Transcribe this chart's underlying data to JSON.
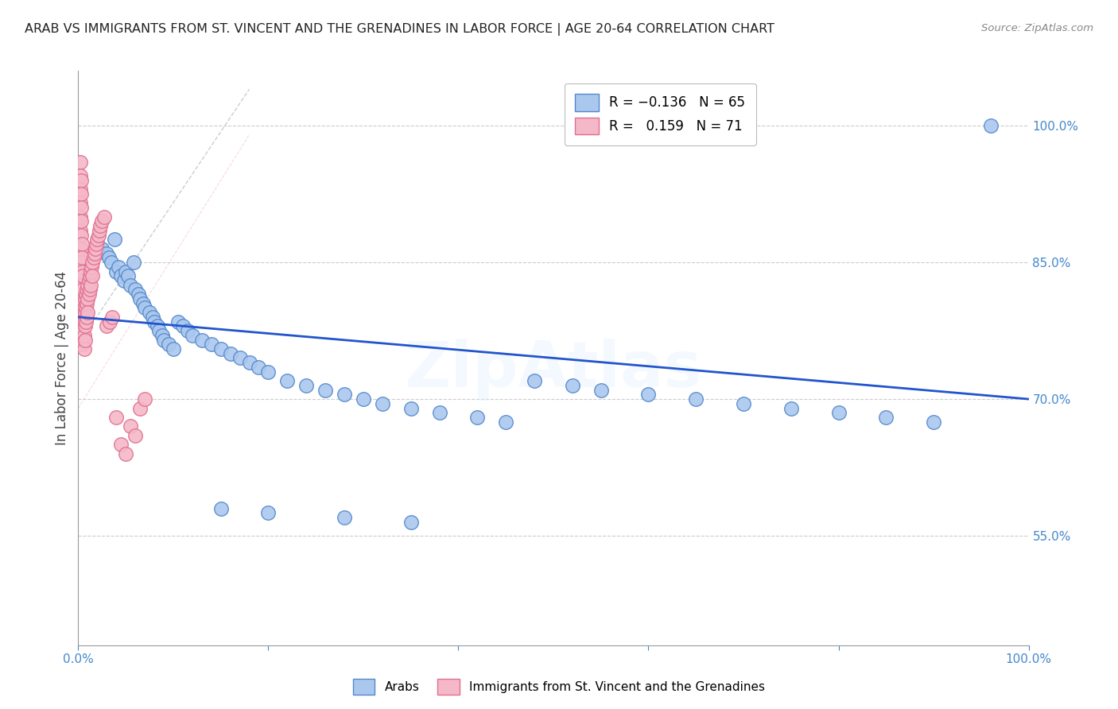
{
  "title": "ARAB VS IMMIGRANTS FROM ST. VINCENT AND THE GRENADINES IN LABOR FORCE | AGE 20-64 CORRELATION CHART",
  "source": "Source: ZipAtlas.com",
  "ylabel": "In Labor Force | Age 20-64",
  "xlim": [
    0.0,
    1.0
  ],
  "ylim": [
    0.43,
    1.06
  ],
  "y_tick_labels": [
    "55.0%",
    "70.0%",
    "85.0%",
    "100.0%"
  ],
  "y_tick_positions": [
    0.55,
    0.7,
    0.85,
    1.0
  ],
  "arab_color": "#aac8ee",
  "arab_edge_color": "#5588cc",
  "svg_color": "#f5b8c8",
  "svg_edge_color": "#e07090",
  "trend_arab_color": "#2255cc",
  "watermark": "ZipAtlas",
  "axis_label_color": "#4488cc",
  "background_color": "#ffffff",
  "grid_color": "#cccccc",
  "title_color": "#222222",
  "arab_x": [
    0.02,
    0.025,
    0.03,
    0.032,
    0.035,
    0.038,
    0.04,
    0.042,
    0.045,
    0.048,
    0.05,
    0.052,
    0.055,
    0.058,
    0.06,
    0.063,
    0.065,
    0.068,
    0.07,
    0.075,
    0.078,
    0.08,
    0.083,
    0.085,
    0.088,
    0.09,
    0.095,
    0.1,
    0.105,
    0.11,
    0.115,
    0.12,
    0.13,
    0.14,
    0.15,
    0.16,
    0.17,
    0.18,
    0.19,
    0.2,
    0.22,
    0.24,
    0.26,
    0.28,
    0.3,
    0.32,
    0.35,
    0.38,
    0.42,
    0.45,
    0.48,
    0.52,
    0.55,
    0.6,
    0.65,
    0.7,
    0.75,
    0.8,
    0.85,
    0.9,
    0.15,
    0.2,
    0.28,
    0.35,
    0.96
  ],
  "arab_y": [
    0.87,
    0.865,
    0.86,
    0.855,
    0.85,
    0.875,
    0.84,
    0.845,
    0.835,
    0.83,
    0.84,
    0.835,
    0.825,
    0.85,
    0.82,
    0.815,
    0.81,
    0.805,
    0.8,
    0.795,
    0.79,
    0.785,
    0.78,
    0.775,
    0.77,
    0.765,
    0.76,
    0.755,
    0.785,
    0.78,
    0.775,
    0.77,
    0.765,
    0.76,
    0.755,
    0.75,
    0.745,
    0.74,
    0.735,
    0.73,
    0.72,
    0.715,
    0.71,
    0.705,
    0.7,
    0.695,
    0.69,
    0.685,
    0.68,
    0.675,
    0.72,
    0.715,
    0.71,
    0.705,
    0.7,
    0.695,
    0.69,
    0.685,
    0.68,
    0.675,
    0.58,
    0.575,
    0.57,
    0.565,
    1.0
  ],
  "svg_x": [
    0.002,
    0.002,
    0.002,
    0.002,
    0.002,
    0.002,
    0.003,
    0.003,
    0.003,
    0.003,
    0.003,
    0.003,
    0.003,
    0.004,
    0.004,
    0.004,
    0.004,
    0.004,
    0.005,
    0.005,
    0.005,
    0.005,
    0.005,
    0.005,
    0.006,
    0.006,
    0.006,
    0.006,
    0.007,
    0.007,
    0.007,
    0.007,
    0.008,
    0.008,
    0.008,
    0.009,
    0.009,
    0.009,
    0.01,
    0.01,
    0.01,
    0.011,
    0.011,
    0.012,
    0.012,
    0.013,
    0.013,
    0.014,
    0.015,
    0.015,
    0.016,
    0.017,
    0.018,
    0.019,
    0.02,
    0.021,
    0.022,
    0.023,
    0.025,
    0.027,
    0.03,
    0.033,
    0.036,
    0.04,
    0.045,
    0.05,
    0.055,
    0.06,
    0.065,
    0.07
  ],
  "svg_y": [
    0.96,
    0.945,
    0.93,
    0.915,
    0.9,
    0.885,
    0.94,
    0.925,
    0.91,
    0.895,
    0.88,
    0.865,
    0.85,
    0.87,
    0.855,
    0.84,
    0.825,
    0.81,
    0.835,
    0.82,
    0.805,
    0.79,
    0.775,
    0.76,
    0.8,
    0.785,
    0.77,
    0.755,
    0.81,
    0.795,
    0.78,
    0.765,
    0.815,
    0.8,
    0.785,
    0.82,
    0.805,
    0.79,
    0.825,
    0.81,
    0.795,
    0.83,
    0.815,
    0.835,
    0.82,
    0.84,
    0.825,
    0.845,
    0.85,
    0.835,
    0.855,
    0.86,
    0.865,
    0.87,
    0.875,
    0.88,
    0.885,
    0.89,
    0.895,
    0.9,
    0.78,
    0.785,
    0.79,
    0.68,
    0.65,
    0.64,
    0.67,
    0.66,
    0.69,
    0.7
  ]
}
